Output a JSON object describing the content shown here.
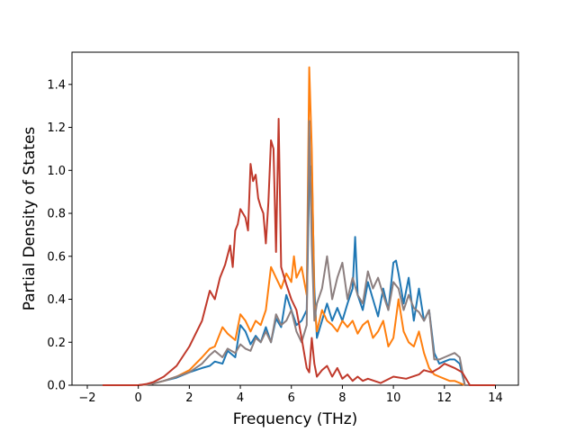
{
  "chart_data": {
    "type": "line",
    "xlabel": "Frequency (THz)",
    "ylabel": "Partial Density of States",
    "xlim": [
      -2.6,
      14.9
    ],
    "ylim": [
      0.0,
      1.55
    ],
    "xticks": [
      "−2",
      "0",
      "2",
      "4",
      "6",
      "8",
      "10",
      "12",
      "14"
    ],
    "xtick_values": [
      -2,
      0,
      2,
      4,
      6,
      8,
      10,
      12,
      14
    ],
    "yticks": [
      "0.0",
      "0.2",
      "0.4",
      "0.6",
      "0.8",
      "1.0",
      "1.2",
      "1.4"
    ],
    "ytick_values": [
      0.0,
      0.2,
      0.4,
      0.6,
      0.8,
      1.0,
      1.2,
      1.4
    ],
    "grid": false,
    "legend": "none",
    "series": [
      {
        "color": "#1f77b4",
        "x": [
          -1.4,
          0.0,
          0.5,
          1.0,
          1.5,
          2.0,
          2.5,
          2.8,
          3.0,
          3.3,
          3.5,
          3.8,
          4.0,
          4.2,
          4.4,
          4.6,
          4.8,
          5.0,
          5.2,
          5.4,
          5.6,
          5.8,
          6.0,
          6.2,
          6.4,
          6.6,
          6.7,
          6.8,
          6.9,
          7.0,
          7.2,
          7.4,
          7.6,
          7.8,
          8.0,
          8.2,
          8.4,
          8.5,
          8.6,
          8.8,
          9.0,
          9.2,
          9.4,
          9.6,
          9.8,
          10.0,
          10.1,
          10.2,
          10.4,
          10.6,
          10.8,
          11.0,
          11.2,
          11.4,
          11.6,
          11.8,
          12.0,
          12.2,
          12.4,
          12.6,
          12.8,
          13.0,
          14.0
        ],
        "y": [
          0.0,
          0.0,
          0.005,
          0.02,
          0.035,
          0.06,
          0.08,
          0.09,
          0.11,
          0.1,
          0.16,
          0.13,
          0.28,
          0.25,
          0.19,
          0.23,
          0.2,
          0.27,
          0.2,
          0.31,
          0.27,
          0.42,
          0.35,
          0.28,
          0.3,
          0.35,
          0.95,
          1.02,
          0.45,
          0.22,
          0.3,
          0.38,
          0.3,
          0.36,
          0.3,
          0.38,
          0.45,
          0.69,
          0.42,
          0.35,
          0.48,
          0.4,
          0.32,
          0.45,
          0.35,
          0.57,
          0.58,
          0.52,
          0.38,
          0.5,
          0.3,
          0.45,
          0.3,
          0.35,
          0.15,
          0.1,
          0.11,
          0.12,
          0.12,
          0.1,
          0.0,
          0.0,
          0.0
        ]
      },
      {
        "color": "#ff7f0e",
        "x": [
          -1.4,
          0.0,
          0.5,
          1.0,
          1.5,
          2.0,
          2.5,
          2.8,
          3.0,
          3.3,
          3.5,
          3.8,
          4.0,
          4.2,
          4.4,
          4.6,
          4.8,
          5.0,
          5.2,
          5.4,
          5.6,
          5.8,
          6.0,
          6.1,
          6.2,
          6.4,
          6.6,
          6.7,
          6.8,
          6.9,
          7.0,
          7.2,
          7.4,
          7.6,
          7.8,
          8.0,
          8.2,
          8.4,
          8.6,
          8.8,
          9.0,
          9.2,
          9.4,
          9.6,
          9.8,
          10.0,
          10.2,
          10.4,
          10.6,
          10.8,
          11.0,
          11.2,
          11.4,
          11.6,
          11.8,
          12.0,
          12.2,
          12.4,
          12.6,
          12.8,
          13.0,
          14.0
        ],
        "y": [
          0.0,
          0.0,
          0.005,
          0.02,
          0.04,
          0.07,
          0.13,
          0.17,
          0.18,
          0.27,
          0.24,
          0.21,
          0.33,
          0.3,
          0.25,
          0.3,
          0.28,
          0.35,
          0.55,
          0.5,
          0.45,
          0.52,
          0.48,
          0.6,
          0.5,
          0.55,
          0.42,
          1.48,
          1.1,
          0.38,
          0.25,
          0.35,
          0.3,
          0.28,
          0.25,
          0.3,
          0.27,
          0.3,
          0.24,
          0.28,
          0.3,
          0.22,
          0.25,
          0.3,
          0.18,
          0.22,
          0.4,
          0.25,
          0.2,
          0.18,
          0.25,
          0.15,
          0.08,
          0.05,
          0.04,
          0.03,
          0.02,
          0.02,
          0.01,
          0.0,
          0.0,
          0.0
        ]
      },
      {
        "color": "#8c7f7f",
        "x": [
          -1.4,
          0.0,
          0.5,
          1.0,
          1.5,
          2.0,
          2.5,
          2.8,
          3.0,
          3.3,
          3.5,
          3.8,
          4.0,
          4.2,
          4.4,
          4.6,
          4.8,
          5.0,
          5.2,
          5.4,
          5.6,
          5.8,
          6.0,
          6.2,
          6.4,
          6.6,
          6.7,
          6.8,
          6.9,
          7.0,
          7.2,
          7.4,
          7.6,
          7.8,
          8.0,
          8.2,
          8.4,
          8.6,
          8.8,
          9.0,
          9.2,
          9.4,
          9.6,
          9.8,
          10.0,
          10.2,
          10.4,
          10.6,
          10.8,
          11.0,
          11.2,
          11.4,
          11.6,
          11.8,
          12.0,
          12.2,
          12.4,
          12.6,
          12.8,
          13.0,
          14.0
        ],
        "y": [
          0.0,
          0.0,
          0.005,
          0.02,
          0.04,
          0.06,
          0.1,
          0.14,
          0.16,
          0.13,
          0.17,
          0.15,
          0.19,
          0.17,
          0.16,
          0.22,
          0.2,
          0.25,
          0.2,
          0.33,
          0.28,
          0.3,
          0.35,
          0.25,
          0.2,
          0.28,
          1.23,
          0.65,
          0.3,
          0.38,
          0.45,
          0.6,
          0.4,
          0.5,
          0.57,
          0.4,
          0.5,
          0.42,
          0.38,
          0.53,
          0.45,
          0.5,
          0.42,
          0.35,
          0.48,
          0.45,
          0.35,
          0.42,
          0.36,
          0.34,
          0.3,
          0.35,
          0.12,
          0.12,
          0.13,
          0.14,
          0.15,
          0.13,
          0.0,
          0.0,
          0.0
        ]
      },
      {
        "color": "#c0392b",
        "x": [
          -1.4,
          0.0,
          0.3,
          0.6,
          1.0,
          1.5,
          2.0,
          2.5,
          2.8,
          3.0,
          3.2,
          3.4,
          3.6,
          3.7,
          3.8,
          3.9,
          4.0,
          4.1,
          4.2,
          4.3,
          4.4,
          4.5,
          4.6,
          4.7,
          4.8,
          4.9,
          5.0,
          5.1,
          5.2,
          5.3,
          5.4,
          5.5,
          5.6,
          5.8,
          6.0,
          6.2,
          6.4,
          6.6,
          6.7,
          6.8,
          6.9,
          7.0,
          7.2,
          7.4,
          7.6,
          7.8,
          8.0,
          8.2,
          8.4,
          8.6,
          8.8,
          9.0,
          9.5,
          10.0,
          10.5,
          11.0,
          11.2,
          11.5,
          11.8,
          12.0,
          12.4,
          12.7,
          13.0,
          14.0
        ],
        "y": [
          0.0,
          0.0,
          0.005,
          0.015,
          0.04,
          0.09,
          0.18,
          0.3,
          0.44,
          0.4,
          0.5,
          0.56,
          0.65,
          0.55,
          0.72,
          0.75,
          0.82,
          0.8,
          0.78,
          0.72,
          1.03,
          0.95,
          0.98,
          0.87,
          0.83,
          0.8,
          0.66,
          0.85,
          1.14,
          1.1,
          0.62,
          1.24,
          0.55,
          0.47,
          0.4,
          0.35,
          0.22,
          0.08,
          0.06,
          0.22,
          0.1,
          0.04,
          0.07,
          0.09,
          0.04,
          0.08,
          0.03,
          0.05,
          0.02,
          0.04,
          0.02,
          0.03,
          0.01,
          0.04,
          0.03,
          0.05,
          0.07,
          0.06,
          0.08,
          0.1,
          0.08,
          0.06,
          0.0,
          0.0
        ]
      }
    ]
  }
}
